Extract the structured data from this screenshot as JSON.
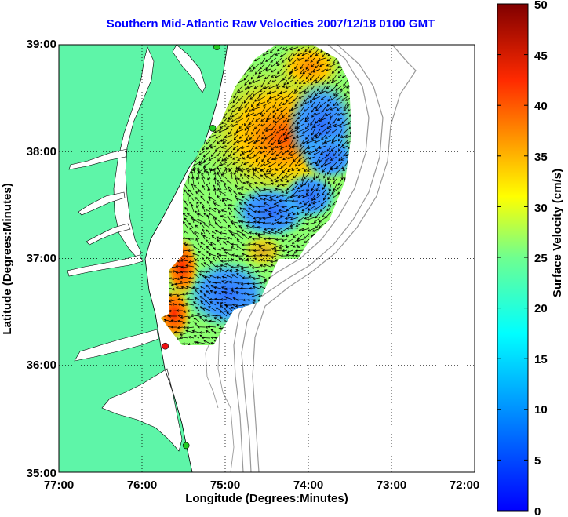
{
  "title": "Southern Mid-Atlantic Raw Velocities 2007/12/18 0100 GMT",
  "map": {
    "x_axis": {
      "label": "Longitude (Degrees:Minutes)",
      "ticks": [
        "77:00",
        "76:00",
        "75:00",
        "74:00",
        "73:00",
        "72:00"
      ],
      "range": [
        -77,
        -72
      ]
    },
    "y_axis": {
      "label": "Latitude (Degrees:Minutes)",
      "ticks": [
        "39:00",
        "38:00",
        "37:00",
        "36:00",
        "35:00"
      ],
      "range": [
        35,
        39
      ]
    },
    "grid": "dotted",
    "colors": {
      "land": "#5ef5a8",
      "water": "#ffffff",
      "bathymetry": "#999999",
      "arrows": "#000000",
      "station_green": "#22cc22",
      "station_red": "#ee1111",
      "title": "#0000ff"
    },
    "stations": [
      {
        "lon": -75.1,
        "lat": 38.98,
        "status": "green"
      },
      {
        "lon": -75.15,
        "lat": 38.22,
        "status": "green"
      },
      {
        "lon": -75.72,
        "lat": 36.18,
        "status": "red"
      },
      {
        "lon": -75.47,
        "lat": 35.25,
        "status": "green"
      }
    ]
  },
  "colorbar": {
    "label": "Surface Velocity (cm/s)",
    "ticks": [
      "50",
      "45",
      "40",
      "35",
      "30",
      "25",
      "20",
      "15",
      "10",
      "5",
      "0"
    ],
    "range": [
      0,
      50
    ]
  },
  "chart_data": {
    "type": "heatmap",
    "title": "Southern Mid-Atlantic Raw Velocities 2007/12/18 0100 GMT",
    "xlabel": "Longitude (Degrees:Minutes)",
    "ylabel": "Latitude (Degrees:Minutes)",
    "xlim": [
      -77,
      -72
    ],
    "ylim": [
      35,
      39
    ],
    "value_label": "Surface Velocity (cm/s)",
    "value_range": [
      0,
      50
    ],
    "speed_field_samples": [
      {
        "lon": -74.2,
        "lat": 38.6,
        "speed": 30
      },
      {
        "lon": -74.4,
        "lat": 38.1,
        "speed": 38
      },
      {
        "lon": -74.8,
        "lat": 37.9,
        "speed": 30
      },
      {
        "lon": -73.8,
        "lat": 38.3,
        "speed": 9
      },
      {
        "lon": -73.7,
        "lat": 37.8,
        "speed": 10
      },
      {
        "lon": -74.6,
        "lat": 37.4,
        "speed": 9
      },
      {
        "lon": -74.2,
        "lat": 37.2,
        "speed": 12
      },
      {
        "lon": -75.3,
        "lat": 37.2,
        "speed": 20
      },
      {
        "lon": -75.5,
        "lat": 36.9,
        "speed": 42
      },
      {
        "lon": -75.6,
        "lat": 36.4,
        "speed": 35
      },
      {
        "lon": -75.2,
        "lat": 36.6,
        "speed": 8
      },
      {
        "lon": -74.8,
        "lat": 36.5,
        "speed": 10
      },
      {
        "lon": -74.9,
        "lat": 37.6,
        "speed": 18
      }
    ]
  }
}
